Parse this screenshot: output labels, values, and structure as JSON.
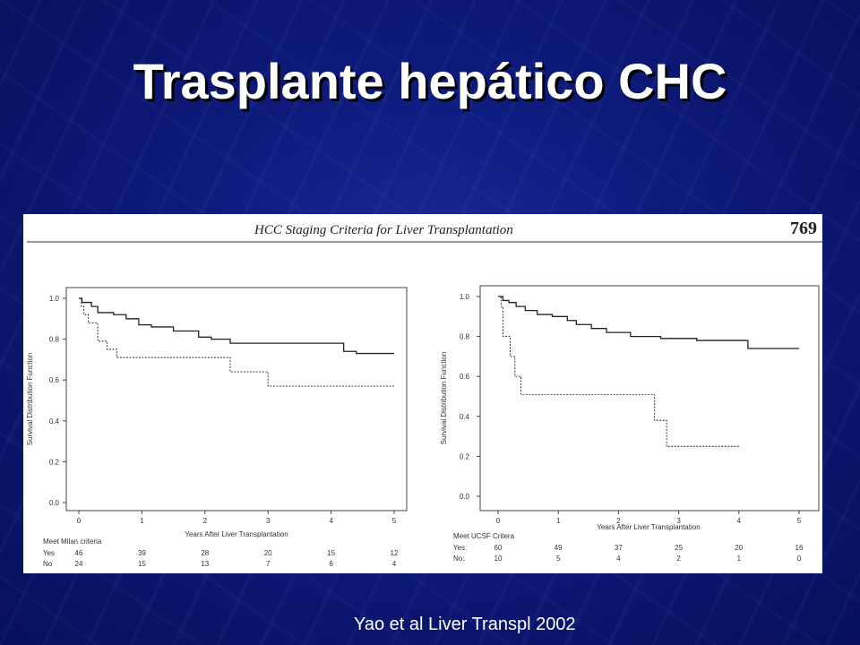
{
  "slide": {
    "title": "Trasplante hepático CHC",
    "citation": "Yao et al Liver Transpl 2002"
  },
  "figure": {
    "header": "HCC Staging Criteria for Liver Transplantation",
    "page_number": "769"
  },
  "colors": {
    "background": "#0d1a7a",
    "title_text": "#ffffff",
    "panel": "#ffffff",
    "ink": "#222222"
  },
  "chart_data": [
    {
      "type": "line",
      "step": true,
      "xlabel": "Years After Liver Transplantation",
      "ylabel": "Survival Distribution Function",
      "xlim": [
        0,
        5
      ],
      "ylim": [
        0,
        1
      ],
      "xticks": [
        "0",
        "1",
        "2",
        "3",
        "4",
        "5"
      ],
      "yticks": [
        "0.0",
        "0.2",
        "0.4",
        "0.6",
        "0.8",
        "1.0"
      ],
      "series": [
        {
          "style": "solid",
          "x": [
            0,
            0.05,
            0.2,
            0.3,
            0.55,
            0.75,
            0.95,
            1.15,
            1.5,
            1.9,
            2.1,
            2.4,
            3.3,
            4.2,
            4.4,
            5.0
          ],
          "y": [
            1.0,
            0.98,
            0.96,
            0.93,
            0.92,
            0.9,
            0.87,
            0.86,
            0.84,
            0.81,
            0.8,
            0.78,
            0.78,
            0.74,
            0.73,
            0.73
          ]
        },
        {
          "style": "dashed",
          "x": [
            0,
            0.04,
            0.08,
            0.15,
            0.3,
            0.45,
            0.6,
            2.2,
            2.4,
            3.0,
            3.3,
            5.0
          ],
          "y": [
            1.0,
            0.96,
            0.92,
            0.88,
            0.79,
            0.75,
            0.71,
            0.71,
            0.64,
            0.57,
            0.57,
            0.57
          ]
        }
      ],
      "risk_table": {
        "label": "Meet Milan criteria",
        "rows": [
          {
            "label": "Yes",
            "values": [
              "46",
              "39",
              "28",
              "20",
              "15",
              "12"
            ]
          },
          {
            "label": "No",
            "values": [
              "24",
              "15",
              "13",
              "7",
              "6",
              "4"
            ]
          }
        ]
      }
    },
    {
      "type": "line",
      "step": true,
      "xlabel": "Years After Liver Transplantation",
      "ylabel": "Survival Distribution Function",
      "xlim": [
        0,
        5
      ],
      "ylim": [
        0,
        1
      ],
      "xticks": [
        "0",
        "1",
        "2",
        "3",
        "4",
        "5"
      ],
      "yticks": [
        "0.0",
        "0.2",
        "0.4",
        "0.6",
        "0.8",
        "1.0"
      ],
      "series": [
        {
          "style": "solid",
          "x": [
            0,
            0.08,
            0.18,
            0.3,
            0.45,
            0.65,
            0.9,
            1.15,
            1.3,
            1.55,
            1.8,
            2.2,
            2.7,
            3.3,
            4.0,
            4.15,
            5.0
          ],
          "y": [
            1.0,
            0.98,
            0.97,
            0.95,
            0.93,
            0.91,
            0.9,
            0.88,
            0.86,
            0.84,
            0.82,
            0.8,
            0.79,
            0.78,
            0.78,
            0.74,
            0.74
          ]
        },
        {
          "style": "dashed",
          "x": [
            0,
            0.05,
            0.08,
            0.2,
            0.28,
            0.38,
            1.0,
            2.6,
            2.8,
            3.4,
            4.0
          ],
          "y": [
            1.0,
            0.95,
            0.8,
            0.7,
            0.6,
            0.51,
            0.51,
            0.38,
            0.25,
            0.25,
            0.25
          ]
        }
      ],
      "risk_table": {
        "label": "Meet UCSF Critera",
        "rows": [
          {
            "label": "Yes:",
            "values": [
              "60",
              "49",
              "37",
              "25",
              "20",
              "16"
            ]
          },
          {
            "label": "No:",
            "values": [
              "10",
              "5",
              "4",
              "2",
              "1",
              "0"
            ]
          }
        ]
      }
    }
  ]
}
